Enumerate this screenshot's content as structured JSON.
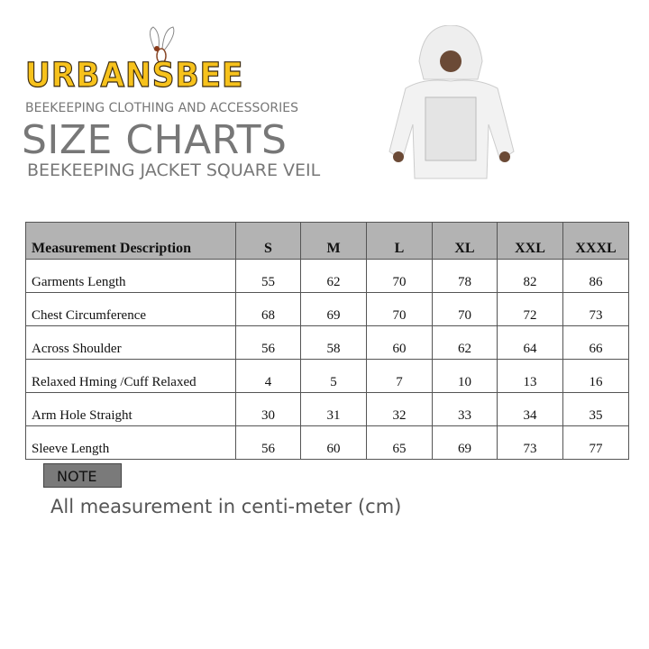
{
  "brand": {
    "logo": "URBANSBEE",
    "tagline": "BEEKEEPING CLOTHING AND ACCESSORIES"
  },
  "title": "SIZE CHARTS",
  "subtitle": "BEEKEEPING JACKET SQUARE VEIL",
  "table": {
    "headers": [
      "Measurement Description",
      "S",
      "M",
      "L",
      "XL",
      "XXL",
      "XXXL"
    ],
    "rows": [
      [
        "Garments Length",
        "55",
        "62",
        "70",
        "78",
        "82",
        "86"
      ],
      [
        "Chest Circumference",
        "68",
        "69",
        "70",
        "70",
        "72",
        "73"
      ],
      [
        "Across Shoulder",
        "56",
        "58",
        "60",
        "62",
        "64",
        "66"
      ],
      [
        "Relaxed Hming /Cuff Relaxed",
        "4",
        "5",
        "7",
        "10",
        "13",
        "16"
      ],
      [
        "Arm Hole Straight",
        "30",
        "31",
        "32",
        "33",
        "34",
        "35"
      ],
      [
        "Sleeve Length",
        "56",
        "60",
        "65",
        "69",
        "73",
        "77"
      ]
    ]
  },
  "note": {
    "label": "NOTE",
    "text": "All measurement in centi-meter (cm)"
  },
  "colors": {
    "logo": "#f7c21c",
    "text": "#777777",
    "header_bg": "#b3b3b3"
  }
}
